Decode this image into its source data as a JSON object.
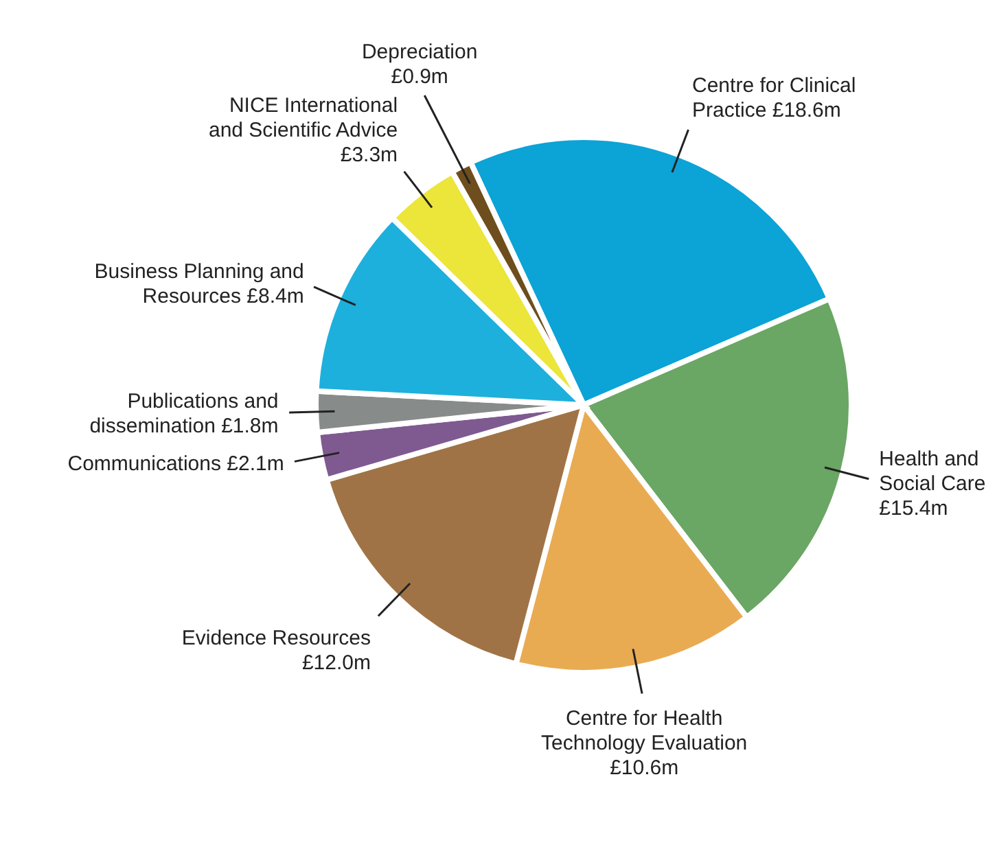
{
  "chart_data": {
    "type": "pie",
    "categories": [
      "Centre for Clinical Practice",
      "Health and Social Care",
      "Centre for Health Technology Evaluation",
      "Evidence Resources",
      "Communications",
      "Publications and dissemination",
      "Business Planning and Resources",
      "NICE International and Scientific Advice",
      "Depreciation"
    ],
    "values": [
      18.6,
      15.4,
      10.6,
      12.0,
      2.1,
      1.8,
      8.4,
      3.3,
      0.9
    ],
    "value_labels": [
      "£18.6m",
      "£15.4m",
      "£10.6m",
      "£12.0m",
      "£2.1m",
      "£1.8m",
      "£8.4m",
      "£3.3m",
      "£0.9m"
    ],
    "colors": [
      "#0ca3d6",
      "#6aa664",
      "#e9ab52",
      "#a07346",
      "#7f5a91",
      "#878b8a",
      "#1db0dd",
      "#ece53a",
      "#6e4e1d"
    ]
  }
}
